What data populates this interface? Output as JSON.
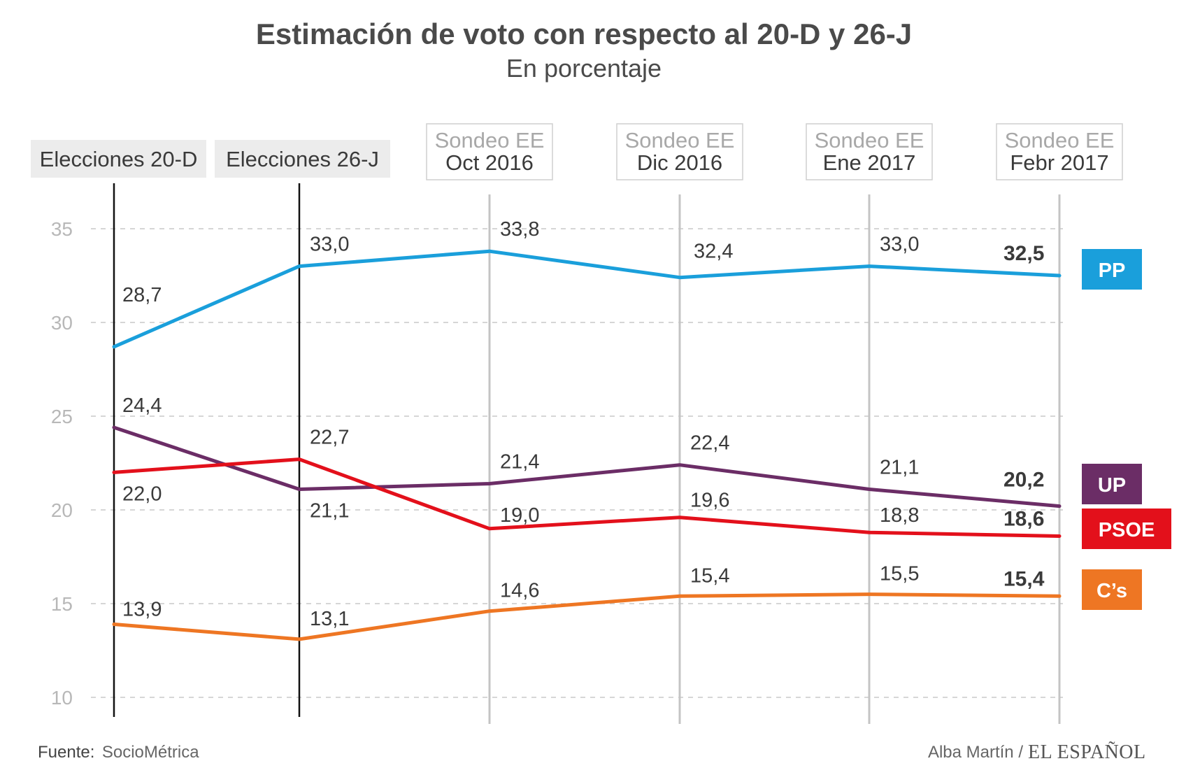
{
  "chart_data": {
    "type": "line",
    "title": "Estimación de voto con respecto al 20-D y 26-J",
    "subtitle": "En porcentaje",
    "ylim": [
      10,
      35
    ],
    "yticks": [
      "10",
      "15",
      "20",
      "25",
      "30",
      "35"
    ],
    "categories": [
      {
        "line1": "Elecciones 20-D",
        "line2": "",
        "kind": "election"
      },
      {
        "line1": "Elecciones 26-J",
        "line2": "",
        "kind": "election"
      },
      {
        "line1": "Sondeo EE",
        "line2": "Oct 2016",
        "kind": "survey"
      },
      {
        "line1": "Sondeo EE",
        "line2": "Dic 2016",
        "kind": "survey"
      },
      {
        "line1": "Sondeo EE",
        "line2": "Ene 2017",
        "kind": "survey"
      },
      {
        "line1": "Sondeo EE",
        "line2": "Febr 2017",
        "kind": "survey"
      }
    ],
    "series": [
      {
        "name": "PP",
        "color": "#1a9fdb",
        "values": [
          28.7,
          33.0,
          33.8,
          32.4,
          33.0,
          32.5
        ],
        "labels": [
          "28,7",
          "33,0",
          "33,8",
          "32,4",
          "33,0",
          "32,5"
        ]
      },
      {
        "name": "UP",
        "color": "#6b2d66",
        "values": [
          24.4,
          21.1,
          21.4,
          22.4,
          21.1,
          20.2
        ],
        "labels": [
          "24,4",
          "21,1",
          "21,4",
          "22,4",
          "21,1",
          "20,2"
        ]
      },
      {
        "name": "PSOE",
        "color": "#e3101b",
        "values": [
          22.0,
          22.7,
          19.0,
          19.6,
          18.8,
          18.6
        ],
        "labels": [
          "22,0",
          "22,7",
          "19,0",
          "19,6",
          "18,8",
          "18,6"
        ]
      },
      {
        "name": "C’s",
        "color": "#ee7623",
        "values": [
          13.9,
          13.1,
          14.6,
          15.4,
          15.5,
          15.4
        ],
        "labels": [
          "13,9",
          "13,1",
          "14,6",
          "15,4",
          "15,5",
          "15,4"
        ]
      }
    ]
  },
  "footer": {
    "source_label": "Fuente:",
    "source_value": "SocioMétrica",
    "author": "Alba Martín /",
    "brand": "EL ESPAÑOL"
  }
}
